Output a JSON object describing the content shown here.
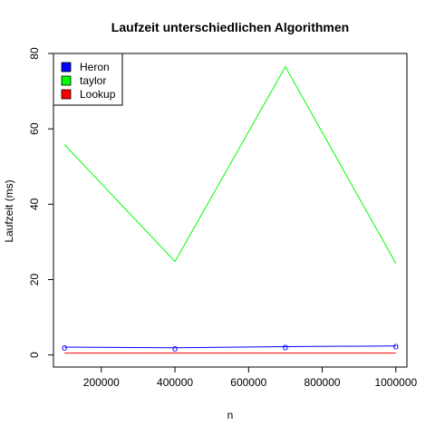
{
  "chart_data": {
    "type": "line",
    "title": "Laufzeit unterschiedlichen Algorithmen",
    "xlabel": "n",
    "ylabel": "Laufzeit (ms)",
    "x": [
      100000,
      400000,
      700000,
      1000000
    ],
    "xlim": [
      70000,
      1030000
    ],
    "ylim": [
      -3.2,
      80
    ],
    "xticks": [
      200000,
      400000,
      600000,
      800000,
      1000000
    ],
    "xtick_labels": [
      "200000",
      "400000",
      "600000",
      "800000",
      "1000000"
    ],
    "yticks": [
      0,
      20,
      40,
      60,
      80
    ],
    "ytick_labels": [
      "0",
      "20",
      "40",
      "60",
      "80"
    ],
    "grid": false,
    "legend_position": "top-left",
    "series": [
      {
        "name": "Heron",
        "color": "#0000ff",
        "values": [
          2.1,
          1.9,
          2.2,
          2.4
        ],
        "marker_text": "o"
      },
      {
        "name": "taylor",
        "color": "#00ff00",
        "values": [
          55.8,
          24.8,
          76.5,
          24.3
        ]
      },
      {
        "name": "Lookup",
        "color": "#ff0000",
        "values": [
          0.5,
          0.5,
          0.5,
          0.5
        ]
      }
    ]
  }
}
